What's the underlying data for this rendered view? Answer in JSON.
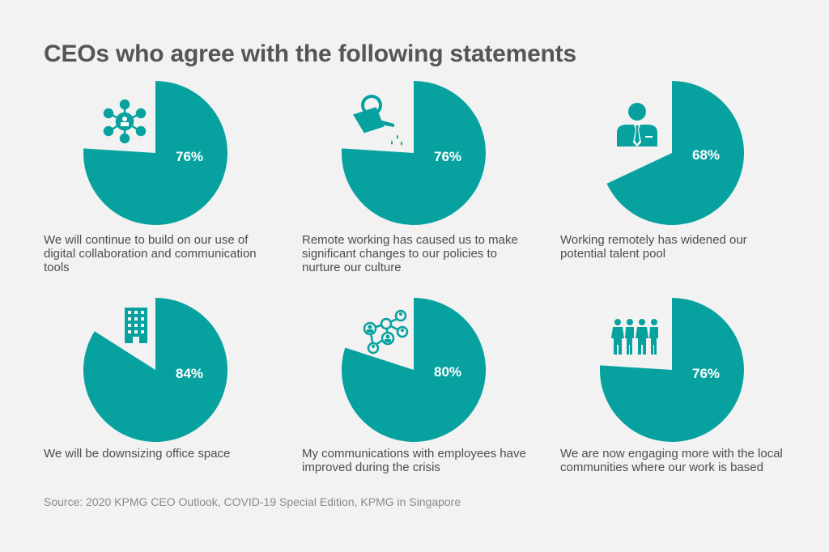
{
  "title": "CEOs who agree with the following statements",
  "source": "Source: 2020 KPMG CEO Outlook, COVID-19 Special Edition, KPMG in Singapore",
  "colors": {
    "pie": "#07a29f",
    "background": "#f2f2f2",
    "label": "#ffffff"
  },
  "chart_data": {
    "type": "pie",
    "title": "CEOs who agree with the following statements",
    "series": [
      {
        "statement": "We will continue to build on our use of digital collaboration and communication tools",
        "value": 76,
        "display": "76%",
        "icon": "network-people-icon"
      },
      {
        "statement": "Remote working has caused us to make significant changes to our policies to nurture our culture",
        "value": 76,
        "display": "76%",
        "icon": "watering-can-icon"
      },
      {
        "statement": "Working remotely has widened our potential talent pool",
        "value": 68,
        "display": "68%",
        "icon": "businessman-icon"
      },
      {
        "statement": "We will be downsizing office space",
        "value": 84,
        "display": "84%",
        "icon": "office-building-icon"
      },
      {
        "statement": "My communications with employees have improved during the crisis",
        "value": 80,
        "display": "80%",
        "icon": "connected-people-icon"
      },
      {
        "statement": "We are now engaging more with the local communities where our work is based",
        "value": 76,
        "display": "76%",
        "icon": "community-people-icon"
      }
    ]
  }
}
